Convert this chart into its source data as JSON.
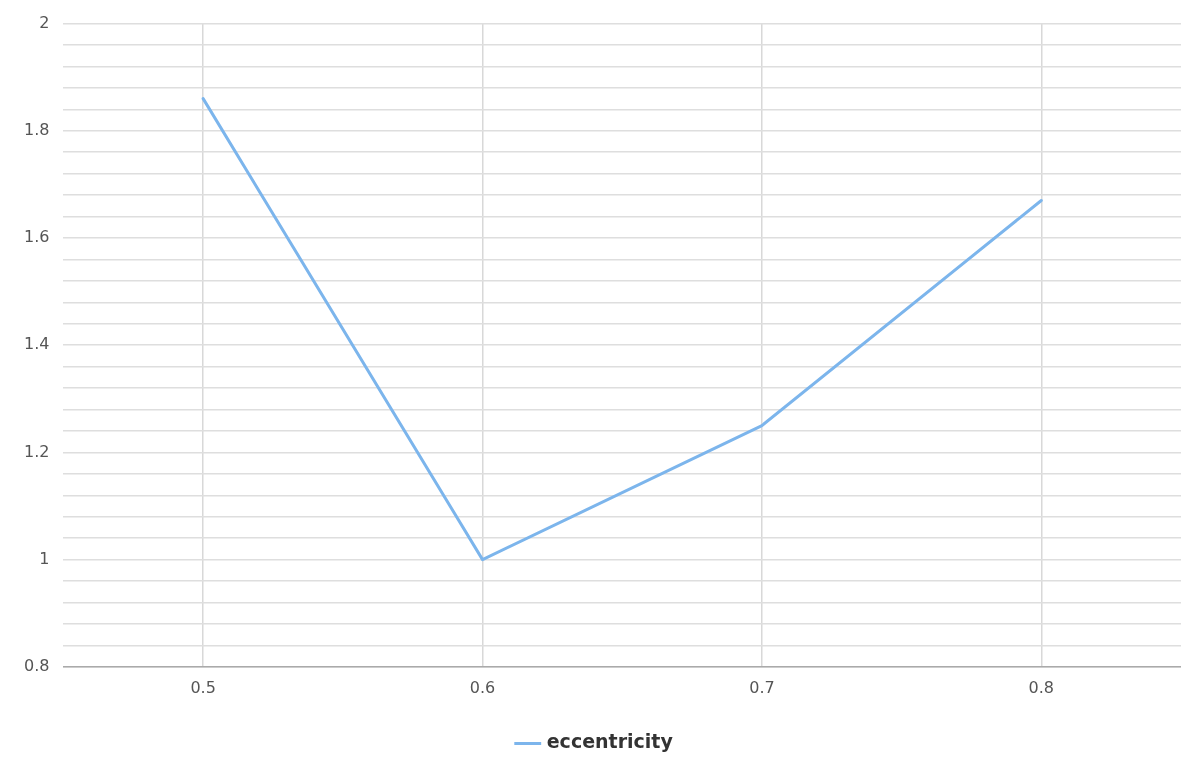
{
  "chart_data": {
    "type": "line",
    "x": [
      0.5,
      0.6,
      0.7,
      0.8
    ],
    "series": [
      {
        "name": "eccentricity",
        "color": "#7cb5ec",
        "values": [
          1.86,
          1.0,
          1.25,
          1.67
        ]
      }
    ],
    "xlim": [
      0.45,
      0.85
    ],
    "xticks": [
      0.5,
      0.6,
      0.7,
      0.8
    ],
    "ylim": [
      0.8,
      2
    ],
    "yticks": [
      0.8,
      {
        "value": 0.84,
        "label": null
      },
      {
        "value": 0.88,
        "label": null
      },
      {
        "value": 0.92,
        "label": null
      },
      {
        "value": 0.96,
        "label": null
      },
      1,
      {
        "value": 1.04,
        "label": null
      },
      {
        "value": 1.08,
        "label": null
      },
      {
        "value": 1.12,
        "label": null
      },
      {
        "value": 1.16,
        "label": null
      },
      1.2,
      {
        "value": 1.24,
        "label": null
      },
      {
        "value": 1.28,
        "label": null
      },
      {
        "value": 1.32,
        "label": null
      },
      {
        "value": 1.36,
        "label": null
      },
      1.4,
      {
        "value": 1.44,
        "label": null
      },
      {
        "value": 1.48,
        "label": null
      },
      {
        "value": 1.52,
        "label": null
      },
      {
        "value": 1.56,
        "label": null
      },
      1.6,
      {
        "value": 1.64,
        "label": null
      },
      {
        "value": 1.68,
        "label": null
      },
      {
        "value": 1.72,
        "label": null
      },
      {
        "value": 1.76,
        "label": null
      },
      1.8,
      {
        "value": 1.84,
        "label": null
      },
      {
        "value": 1.88,
        "label": null
      },
      {
        "value": 1.92,
        "label": null
      },
      {
        "value": 1.96,
        "label": null
      },
      2
    ],
    "grid": true,
    "legend": "bottom",
    "marker": "none",
    "line_style": "solid"
  }
}
